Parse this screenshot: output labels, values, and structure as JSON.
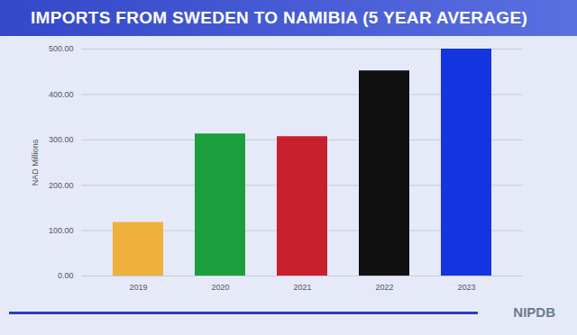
{
  "chart_data": {
    "type": "bar",
    "title": "IMPORTS FROM SWEDEN TO NAMIBIA (5 YEAR AVERAGE)",
    "ylabel": "NAD Millions",
    "annotations": [
      "NIPDB"
    ],
    "categories": [
      "2019",
      "2020",
      "2021",
      "2022",
      "2023"
    ],
    "values": [
      118,
      313,
      307,
      452,
      500
    ],
    "colors": [
      "#f0b03c",
      "#1b9e3c",
      "#c8202c",
      "#111111",
      "#1434e0"
    ],
    "ylim": [
      0,
      500
    ],
    "yticks": [
      {
        "value": 0,
        "label": "0.00"
      },
      {
        "value": 100,
        "label": "100.00"
      },
      {
        "value": 200,
        "label": "200.00"
      },
      {
        "value": 300,
        "label": "300.00"
      },
      {
        "value": 400,
        "label": "400.00"
      },
      {
        "value": 500,
        "label": "500.00"
      }
    ],
    "grid": true
  }
}
